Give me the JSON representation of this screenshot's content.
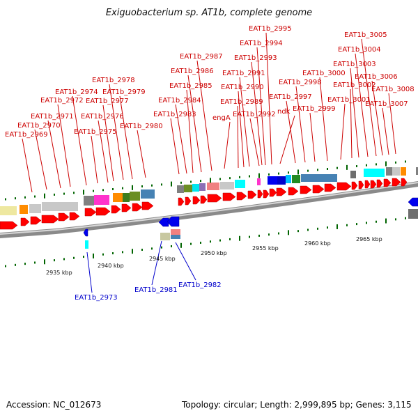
{
  "title": "Exiguobacterium sp. AT1b, complete genome",
  "accession": "Accession: NC_012673",
  "topology": "Topology: circular; Length: 2,999,895 bp; Genes: 3,115",
  "colors": {
    "forward_label": "#cc0000",
    "reverse_label": "#0000cc",
    "forward_gene": "#ff0000",
    "reverse_gene": "#0000ee",
    "backbone": "#8a8a8a",
    "tick": "#006400"
  },
  "scale_labels": [
    "2935 kbp",
    "2940 kbp",
    "2945 kbp",
    "2950 kbp",
    "2955 kbp",
    "2960 kbp",
    "2965 kbp"
  ],
  "forward_labels": [
    "EAT1b_2969",
    "EAT1b_2970",
    "EAT1b_2971",
    "EAT1b_2972",
    "EAT1b_2974",
    "EAT1b_2975",
    "EAT1b_2976",
    "EAT1b_2977",
    "EAT1b_2978",
    "EAT1b_2979",
    "EAT1b_2980",
    "EAT1b_2983",
    "EAT1b_2984",
    "EAT1b_2985",
    "EAT1b_2986",
    "EAT1b_2987",
    "engA",
    "EAT1b_2989",
    "EAT1b_2990",
    "EAT1b_2991",
    "EAT1b_2992",
    "EAT1b_2993",
    "EAT1b_2994",
    "EAT1b_2995",
    "ndk",
    "EAT1b_2997",
    "EAT1b_2998",
    "EAT1b_2999",
    "EAT1b_3000",
    "EAT1b_3001",
    "EAT1b_3002",
    "EAT1b_3003",
    "EAT1b_3004",
    "EAT1b_3005",
    "EAT1b_3006",
    "EAT1b_3007",
    "EAT1b_3008"
  ],
  "reverse_labels": [
    "EAT1b_2973",
    "EAT1b_2981",
    "EAT1b_2982"
  ]
}
